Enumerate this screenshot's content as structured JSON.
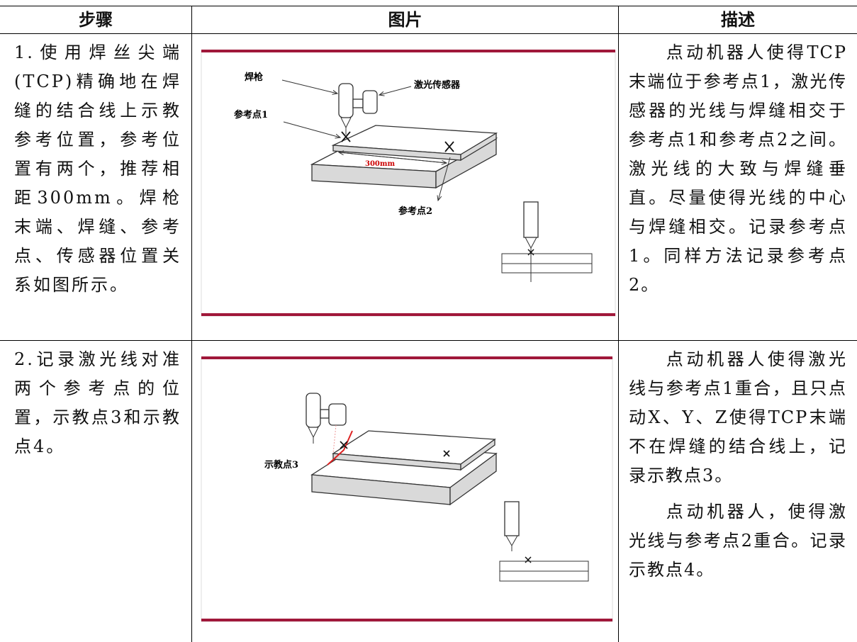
{
  "header": [
    "步骤",
    "图片",
    "描述"
  ],
  "rows": [
    {
      "step": "1.使用焊丝尖端(TCP)精确地在焊缝的结合线上示教参考位置，参考位置有两个，推荐相距300mm。焊枪末端、焊缝、参考点、传感器位置关系如图所示。",
      "figure": {
        "labels": [
          "焊枪",
          "激光传感器",
          "参考点1",
          "300mm",
          "参考点2"
        ]
      },
      "description": [
        "点动机器人使得TCP末端位于参考点1，激光传感器的光线与焊缝相交于参考点1和参考点2之间。激光线的大致与焊缝垂直。尽量使得光线的中心与焊缝相交。记录参考点1。同样方法记录参考点2。"
      ]
    },
    {
      "step": "2.记录激光线对准两个参考点的位置，示教点3和示教点4。",
      "figure": {
        "labels": [
          "示教点3"
        ]
      },
      "description": [
        "点动机器人使得激光线与参考点1重合，且只点动X、Y、Z使得TCP末端不在焊缝的结合线上，记录示教点3。",
        "点动机器人，使得激光线与参考点2重合。记录示教点4。"
      ]
    }
  ]
}
